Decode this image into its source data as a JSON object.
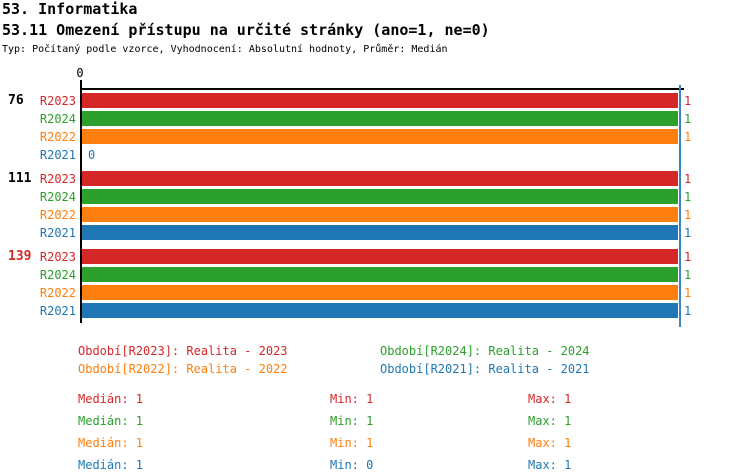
{
  "header": {
    "title1": "53. Informatika",
    "title2": "53.11 Omezení přístupu na určité stránky (ano=1, ne=0)",
    "subtitle": "Typ: Počítaný podle vzorce, Vyhodnocení: Absolutní hodnoty, Průměr: Medián"
  },
  "colors": {
    "R2023": "#D62728",
    "R2024": "#2CA02C",
    "R2022": "#FF7F0E",
    "R2021": "#1F77B4",
    "axis": "#000000",
    "median_line": "#3787C8",
    "highlighted_group_label": "#D62728"
  },
  "chart_data": {
    "type": "bar",
    "orientation": "horizontal",
    "xlim": [
      0,
      1
    ],
    "x_tick_labels": [
      "0"
    ],
    "zero_tick_label": "0",
    "median_marker_value": 1,
    "series_order": [
      "R2023",
      "R2024",
      "R2022",
      "R2021"
    ],
    "series": [
      {
        "name": "R2023",
        "color": "#D62728",
        "median": 1,
        "min": 1,
        "max": 1
      },
      {
        "name": "R2024",
        "color": "#2CA02C",
        "median": 1,
        "min": 1,
        "max": 1
      },
      {
        "name": "R2022",
        "color": "#FF7F0E",
        "median": 1,
        "min": 1,
        "max": 1
      },
      {
        "name": "R2021",
        "color": "#1F77B4",
        "median": 1,
        "min": 0,
        "max": 1
      }
    ],
    "groups": [
      {
        "label": "76",
        "label_color": "#000000",
        "values": {
          "R2023": 1,
          "R2024": 1,
          "R2022": 1,
          "R2021": 0
        }
      },
      {
        "label": "111",
        "label_color": "#000000",
        "values": {
          "R2023": 1,
          "R2024": 1,
          "R2022": 1,
          "R2021": 1
        }
      },
      {
        "label": "139",
        "label_color": "#D62728",
        "values": {
          "R2023": 1,
          "R2024": 1,
          "R2022": 1,
          "R2021": 1
        }
      }
    ]
  },
  "legend": {
    "items": [
      {
        "label": "Období[R2023]: Realita - 2023",
        "series": "R2023"
      },
      {
        "label": "Období[R2024]: Realita - 2024",
        "series": "R2024"
      },
      {
        "label": "Období[R2022]: Realita - 2022",
        "series": "R2022"
      },
      {
        "label": "Období[R2021]: Realita - 2021",
        "series": "R2021"
      }
    ]
  },
  "stats": {
    "rows": [
      {
        "series": "R2023",
        "median": "Medián: 1",
        "min": "Min: 1",
        "max": "Max: 1"
      },
      {
        "series": "R2024",
        "median": "Medián: 1",
        "min": "Min: 1",
        "max": "Max: 1"
      },
      {
        "series": "R2022",
        "median": "Medián: 1",
        "min": "Min: 1",
        "max": "Max: 1"
      },
      {
        "series": "R2021",
        "median": "Medián: 1",
        "min": "Min: 0",
        "max": "Max: 1"
      }
    ]
  }
}
